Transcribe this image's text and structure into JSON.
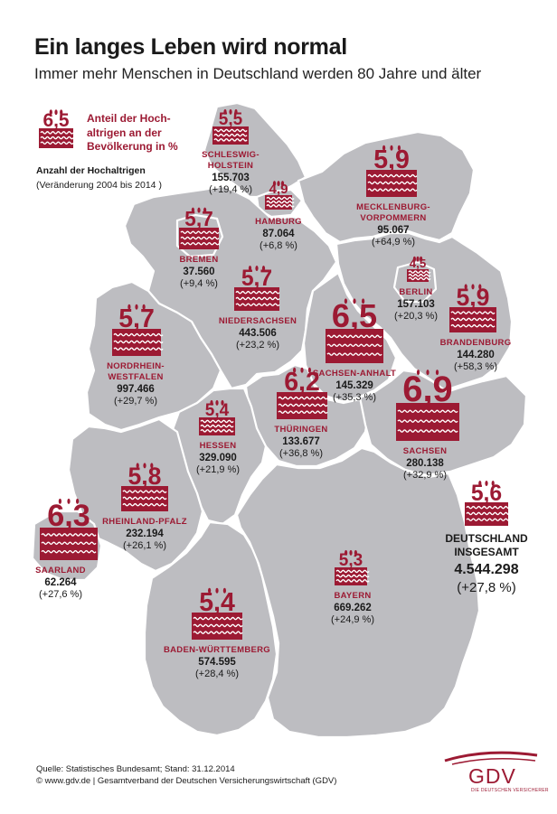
{
  "title": "Ein langes Leben wird normal",
  "subtitle": "Immer mehr Menschen in Deutschland werden 80 Jahre und älter",
  "legend": {
    "cake_value": "6,5",
    "share_text_1": "Anteil der Hoch-",
    "share_text_2": "altrigen an der",
    "share_text_3": "Bevölkerung in %",
    "count_label": "Anzahl der Hochaltrigen",
    "change_label": "(Veränderung 2004 bis 2014 )"
  },
  "states": [
    {
      "name": "SCHLESWIG-HOLSTEIN",
      "share": "5,5",
      "count": "155.703",
      "change": "(+19,4 %)"
    },
    {
      "name": "HAMBURG",
      "share": "4,9",
      "count": "87.064",
      "change": "(+6,8 %)"
    },
    {
      "name": "MECKLENBURG-VORPOMMERN",
      "share": "5,9",
      "count": "95.067",
      "change": "(+64,9 %)"
    },
    {
      "name": "BREMEN",
      "share": "5,7",
      "count": "37.560",
      "change": "(+9,4 %)"
    },
    {
      "name": "BERLIN",
      "share": "4,5",
      "count": "157.103",
      "change": "(+20,3 %)"
    },
    {
      "name": "BRANDENBURG",
      "share": "5,9",
      "count": "144.280",
      "change": "(+58,3 %)"
    },
    {
      "name": "NIEDERSACHSEN",
      "share": "5,7",
      "count": "443.506",
      "change": "(+23,2 %)"
    },
    {
      "name": "SACHSEN-ANHALT",
      "share": "6,5",
      "count": "145.329",
      "change": "(+35,3 %)"
    },
    {
      "name": "NORDRHEIN-WESTFALEN",
      "share": "5,7",
      "count": "997.466",
      "change": "(+29,7 %)"
    },
    {
      "name": "THÜRINGEN",
      "share": "6,2",
      "count": "133.677",
      "change": "(+36,8 %)"
    },
    {
      "name": "SACHSEN",
      "share": "6,9",
      "count": "280.138",
      "change": "(+32,9 %)"
    },
    {
      "name": "HESSEN",
      "share": "5,4",
      "count": "329.090",
      "change": "(+21,9 %)"
    },
    {
      "name": "RHEINLAND-PFALZ",
      "share": "5,8",
      "count": "232.194",
      "change": "(+26,1 %)"
    },
    {
      "name": "SAARLAND",
      "share": "6,3",
      "count": "62.264",
      "change": "(+27,6 %)"
    },
    {
      "name": "BAYERN",
      "share": "5,3",
      "count": "669.262",
      "change": "(+24,9 %)"
    },
    {
      "name": "BADEN-WÜRTTEMBERG",
      "share": "5,4",
      "count": "574.595",
      "change": "(+28,4 %)"
    }
  ],
  "total": {
    "label_1": "DEUTSCHLAND",
    "label_2": "INSGESAMT",
    "share": "5,6",
    "count": "4.544.298",
    "change": "(+27,8 %)"
  },
  "source": "Quelle: Statistisches Bundesamt; Stand: 31.12.2014",
  "copyright": "© www.gdv.de | Gesamtverband der Deutschen Versicherungswirtschaft (GDV)",
  "logo": {
    "text": "GDV",
    "sub": "DIE DEUTSCHEN VERSICHERER"
  },
  "colors": {
    "accent": "#9c1a33",
    "map": "#bdbdc1",
    "border": "#ffffff"
  }
}
